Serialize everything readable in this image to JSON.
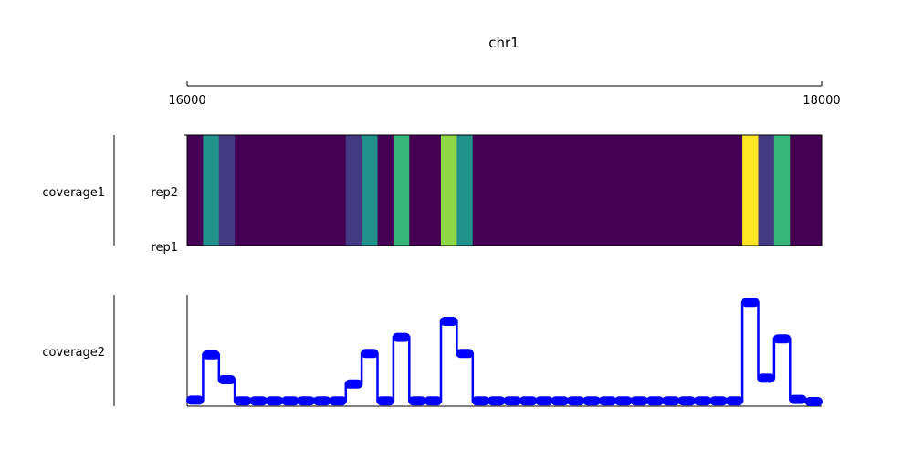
{
  "chart_data": {
    "type": "genome-tracks",
    "title": "chr1",
    "x_range": [
      16000,
      18000
    ],
    "x_ticks": [
      16000,
      18000
    ],
    "x_tick_labels": [
      "16000",
      "18000"
    ],
    "bin_size": 50,
    "tracks": [
      {
        "name": "coverage1",
        "type": "heatmap",
        "rows": [
          "rep1",
          "rep2"
        ],
        "colormap": [
          "#440154",
          "#443a83",
          "#31688e",
          "#21918c",
          "#35b779",
          "#8fd744",
          "#fde725"
        ],
        "value_range": [
          0,
          6
        ],
        "values": [
          0,
          3,
          1,
          0,
          0,
          0,
          0,
          0,
          0,
          0,
          1,
          3,
          0,
          4,
          0,
          0,
          5,
          3,
          0,
          0,
          0,
          0,
          0,
          0,
          0,
          0,
          0,
          0,
          0,
          0,
          0,
          0,
          0,
          0,
          0,
          6,
          1,
          4,
          0,
          0
        ]
      },
      {
        "name": "coverage2",
        "type": "step",
        "color": "#0000ff",
        "values": [
          0.1,
          3.2,
          1.5,
          0.05,
          0.05,
          0.05,
          0.05,
          0.05,
          0.05,
          0.05,
          1.2,
          3.3,
          0.05,
          4.4,
          0.05,
          0.05,
          5.5,
          3.3,
          0.05,
          0.05,
          0.05,
          0.05,
          0.05,
          0.05,
          0.05,
          0.05,
          0.05,
          0.05,
          0.05,
          0.05,
          0.05,
          0.05,
          0.05,
          0.05,
          0.05,
          6.8,
          1.6,
          4.3,
          0.15,
          0.0
        ]
      }
    ]
  }
}
